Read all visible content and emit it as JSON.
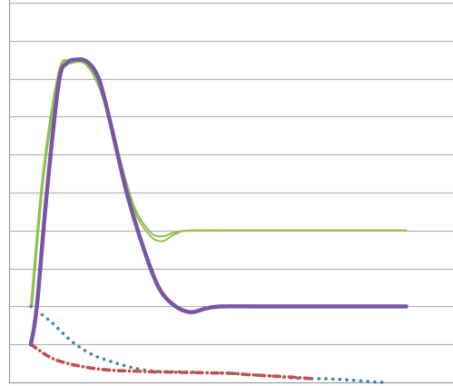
{
  "colors": {
    "background": "#ffffff",
    "gridline": "#b4b4b4",
    "axis": "#9c9c9c",
    "green_series": "#92c050",
    "purple_series": "#7a55a6",
    "blue_series": "#3f86b8",
    "red_series": "#c3504d"
  },
  "chart_data": {
    "type": "line",
    "title": "",
    "xlabel": "",
    "ylabel": "",
    "xlim": [
      0,
      100
    ],
    "ylim": [
      0,
      10
    ],
    "grid": true,
    "legend": "none",
    "y_gridlines": [
      1,
      2,
      3,
      4,
      5,
      6,
      7,
      8,
      9,
      10
    ],
    "series": [
      {
        "key": "green-outer",
        "color": "#92c050",
        "style": "thin-solid",
        "points": [
          [
            0,
            2
          ],
          [
            3,
            5.5
          ],
          [
            7,
            8.2
          ],
          [
            10,
            8.45
          ],
          [
            14,
            8.4
          ],
          [
            18,
            7.6
          ],
          [
            22,
            6
          ],
          [
            26,
            4.6
          ],
          [
            30,
            3.95
          ],
          [
            33,
            3.85
          ],
          [
            36,
            3.95
          ],
          [
            40,
            4
          ],
          [
            55,
            4
          ],
          [
            70,
            4
          ],
          [
            85,
            4
          ],
          [
            94,
            4
          ]
        ]
      },
      {
        "key": "green-inner",
        "color": "#92c050",
        "style": "thin-solid",
        "points": [
          [
            0.3,
            2
          ],
          [
            3.3,
            5.5
          ],
          [
            7.3,
            8.15
          ],
          [
            10,
            8.4
          ],
          [
            14,
            8.35
          ],
          [
            18,
            7.5
          ],
          [
            22,
            5.9
          ],
          [
            26,
            4.5
          ],
          [
            30,
            3.85
          ],
          [
            33,
            3.72
          ],
          [
            36,
            3.9
          ],
          [
            40,
            4
          ],
          [
            55,
            4
          ],
          [
            70,
            4
          ],
          [
            85,
            4
          ],
          [
            94,
            4
          ]
        ]
      },
      {
        "key": "purple",
        "color": "#7a55a6",
        "style": "thick-solid",
        "points": [
          [
            0,
            1
          ],
          [
            1.5,
            2
          ],
          [
            4,
            5
          ],
          [
            7,
            7.9
          ],
          [
            9,
            8.4
          ],
          [
            11,
            8.5
          ],
          [
            14,
            8.45
          ],
          [
            17,
            8
          ],
          [
            20,
            6.8
          ],
          [
            24,
            5
          ],
          [
            28,
            3.6
          ],
          [
            32,
            2.5
          ],
          [
            36,
            2.02
          ],
          [
            40,
            1.85
          ],
          [
            44,
            1.95
          ],
          [
            48,
            2
          ],
          [
            60,
            2
          ],
          [
            75,
            2
          ],
          [
            94,
            2
          ]
        ]
      },
      {
        "key": "blue",
        "color": "#3f86b8",
        "style": "dotted",
        "points": [
          [
            0,
            2
          ],
          [
            5,
            1.6
          ],
          [
            10,
            1.1
          ],
          [
            15,
            0.75
          ],
          [
            20,
            0.55
          ],
          [
            25,
            0.4
          ],
          [
            30,
            0.3
          ],
          [
            35,
            0.28
          ],
          [
            40,
            0.27
          ],
          [
            45,
            0.25
          ],
          [
            50,
            0.24
          ],
          [
            55,
            0.2
          ],
          [
            60,
            0.17
          ],
          [
            65,
            0.12
          ],
          [
            70,
            0.1
          ],
          [
            75,
            0.09
          ],
          [
            80,
            0.06
          ],
          [
            85,
            0.02
          ],
          [
            88,
            0
          ]
        ]
      },
      {
        "key": "red",
        "color": "#c3504d",
        "style": "dash-dot",
        "points": [
          [
            0,
            1
          ],
          [
            5,
            0.65
          ],
          [
            10,
            0.48
          ],
          [
            15,
            0.38
          ],
          [
            20,
            0.32
          ],
          [
            25,
            0.3
          ],
          [
            30,
            0.28
          ],
          [
            35,
            0.27
          ],
          [
            40,
            0.26
          ],
          [
            45,
            0.25
          ],
          [
            50,
            0.24
          ],
          [
            55,
            0.2
          ],
          [
            60,
            0.17
          ],
          [
            65,
            0.14
          ],
          [
            70,
            0.1
          ]
        ]
      }
    ]
  }
}
